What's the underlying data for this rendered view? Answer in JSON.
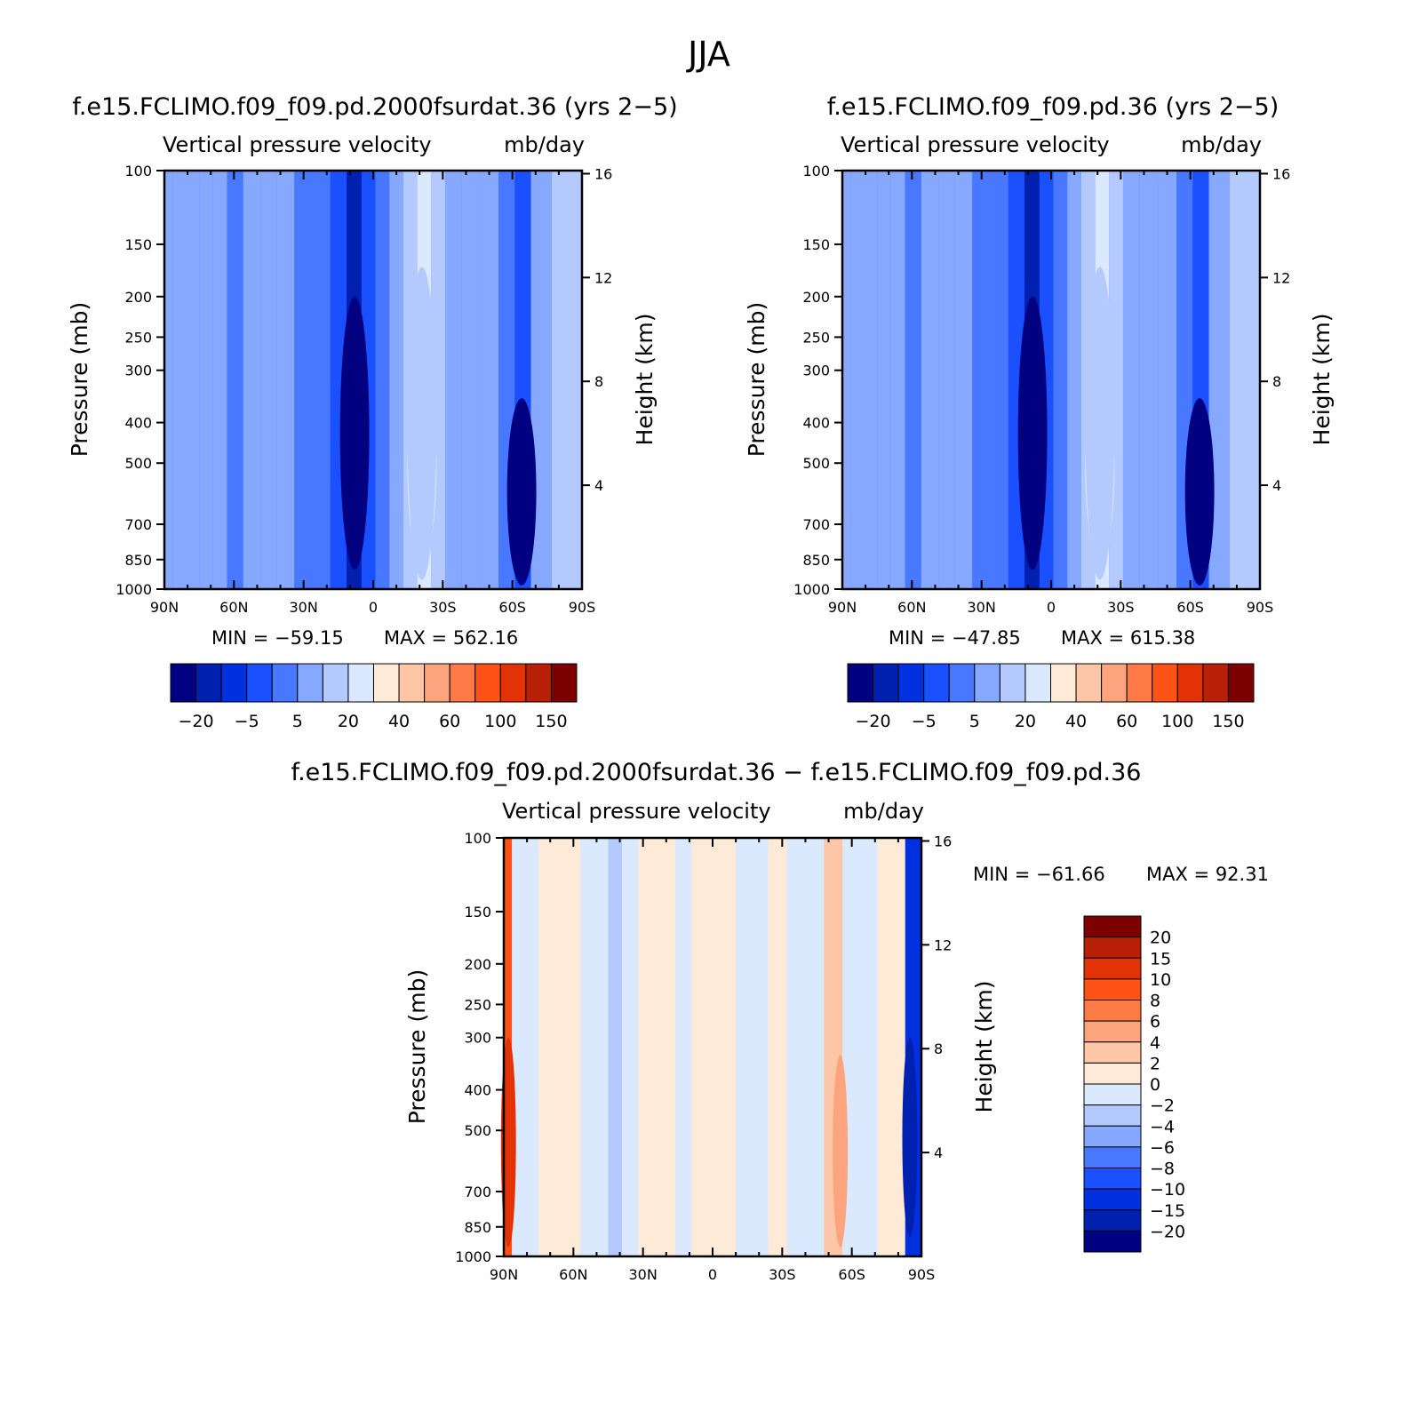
{
  "figure": {
    "title": "JJA",
    "colors": {
      "blue_scale": [
        "#000080",
        "#0020b0",
        "#0030e0",
        "#1a50ff",
        "#4878ff",
        "#86a8ff",
        "#b4caff",
        "#dbe9ff"
      ],
      "red_scale": [
        "#ffead7",
        "#fdc6a6",
        "#fba47d",
        "#fe7a46",
        "#fe5216",
        "#e33205",
        "#b82108",
        "#7d0000"
      ]
    }
  },
  "chart_data": [
    {
      "id": "panel-a",
      "type": "heatmap",
      "title": "f.e15.FCLIMO.f09_f09.pd.2000fsurdat.36 (yrs 2−5)",
      "subtitle_left": "Vertical pressure velocity",
      "subtitle_right": "mb/day",
      "xlabel": "",
      "ylabel": "Pressure (mb)",
      "ylabel_right": "Height (km)",
      "x_ticks": [
        "90N",
        "60N",
        "30N",
        "0",
        "30S",
        "60S",
        "90S"
      ],
      "x_values": [
        90,
        60,
        30,
        0,
        -30,
        -60,
        -90
      ],
      "y_ticks": [
        "100",
        "150",
        "200",
        "250",
        "300",
        "400",
        "500",
        "700",
        "850",
        "1000"
      ],
      "y_values": [
        100,
        150,
        200,
        250,
        300,
        400,
        500,
        700,
        850,
        1000
      ],
      "y_right_ticks": [
        "16",
        "12",
        "8",
        "4"
      ],
      "y_right_values": [
        16,
        12,
        8,
        4
      ],
      "ylim": [
        1000,
        100
      ],
      "min_label": "MIN = −59.15",
      "max_label": "MAX = 562.16",
      "min": -59.15,
      "max": 562.16,
      "colorbar_labels": [
        "−20",
        "−5",
        "5",
        "20",
        "40",
        "60",
        "100",
        "150"
      ],
      "columns": [
        {
          "lat": 89,
          "v": 5
        },
        {
          "lat": 84,
          "v": 8
        },
        {
          "lat": 78,
          "v": 5
        },
        {
          "lat": 72,
          "v": 8
        },
        {
          "lat": 66,
          "v": 5
        },
        {
          "lat": 60,
          "v": 2
        },
        {
          "lat": 52,
          "v": 5
        },
        {
          "lat": 45,
          "v": 8
        },
        {
          "lat": 38,
          "v": 5
        },
        {
          "lat": 30,
          "v": 2
        },
        {
          "lat": 22,
          "v": 0
        },
        {
          "lat": 15,
          "v": -5
        },
        {
          "lat": 8,
          "v": -20
        },
        {
          "lat": 2,
          "v": -5
        },
        {
          "lat": -4,
          "v": 2
        },
        {
          "lat": -10,
          "v": 8
        },
        {
          "lat": -16,
          "v": 12
        },
        {
          "lat": -22,
          "v": 20
        },
        {
          "lat": -28,
          "v": 12
        },
        {
          "lat": -34,
          "v": 8
        },
        {
          "lat": -42,
          "v": 5
        },
        {
          "lat": -50,
          "v": 5
        },
        {
          "lat": -58,
          "v": 2
        },
        {
          "lat": -64,
          "v": -5
        },
        {
          "lat": -72,
          "v": 8
        },
        {
          "lat": -82,
          "v": 12
        }
      ]
    },
    {
      "id": "panel-b",
      "type": "heatmap",
      "title": "f.e15.FCLIMO.f09_f09.pd.36 (yrs 2−5)",
      "subtitle_left": "Vertical pressure velocity",
      "subtitle_right": "mb/day",
      "xlabel": "",
      "ylabel": "Pressure (mb)",
      "ylabel_right": "Height (km)",
      "x_ticks": [
        "90N",
        "60N",
        "30N",
        "0",
        "30S",
        "60S",
        "90S"
      ],
      "x_values": [
        90,
        60,
        30,
        0,
        -30,
        -60,
        -90
      ],
      "y_ticks": [
        "100",
        "150",
        "200",
        "250",
        "300",
        "400",
        "500",
        "700",
        "850",
        "1000"
      ],
      "y_values": [
        100,
        150,
        200,
        250,
        300,
        400,
        500,
        700,
        850,
        1000
      ],
      "y_right_ticks": [
        "16",
        "12",
        "8",
        "4"
      ],
      "y_right_values": [
        16,
        12,
        8,
        4
      ],
      "ylim": [
        1000,
        100
      ],
      "min_label": "MIN = −47.85",
      "max_label": "MAX = 615.38",
      "min": -47.85,
      "max": 615.38,
      "colorbar_labels": [
        "−20",
        "−5",
        "5",
        "20",
        "40",
        "60",
        "100",
        "150"
      ],
      "columns": [
        {
          "lat": 89,
          "v": 5
        },
        {
          "lat": 84,
          "v": 8
        },
        {
          "lat": 78,
          "v": 5
        },
        {
          "lat": 72,
          "v": 8
        },
        {
          "lat": 66,
          "v": 5
        },
        {
          "lat": 60,
          "v": 2
        },
        {
          "lat": 52,
          "v": 5
        },
        {
          "lat": 45,
          "v": 8
        },
        {
          "lat": 38,
          "v": 5
        },
        {
          "lat": 30,
          "v": 2
        },
        {
          "lat": 22,
          "v": 0
        },
        {
          "lat": 15,
          "v": -5
        },
        {
          "lat": 8,
          "v": -20
        },
        {
          "lat": 2,
          "v": -5
        },
        {
          "lat": -4,
          "v": 2
        },
        {
          "lat": -10,
          "v": 8
        },
        {
          "lat": -16,
          "v": 12
        },
        {
          "lat": -22,
          "v": 20
        },
        {
          "lat": -28,
          "v": 12
        },
        {
          "lat": -34,
          "v": 8
        },
        {
          "lat": -42,
          "v": 5
        },
        {
          "lat": -50,
          "v": 5
        },
        {
          "lat": -58,
          "v": 2
        },
        {
          "lat": -64,
          "v": -5
        },
        {
          "lat": -72,
          "v": 8
        },
        {
          "lat": -82,
          "v": 12
        }
      ]
    },
    {
      "id": "panel-c",
      "type": "heatmap",
      "title": "f.e15.FCLIMO.f09_f09.pd.2000fsurdat.36 − f.e15.FCLIMO.f09_f09.pd.36",
      "subtitle_left": "Vertical pressure velocity",
      "subtitle_right": "mb/day",
      "xlabel": "",
      "ylabel": "Pressure (mb)",
      "ylabel_right": "Height (km)",
      "x_ticks": [
        "90N",
        "60N",
        "30N",
        "0",
        "30S",
        "60S",
        "90S"
      ],
      "x_values": [
        90,
        60,
        30,
        0,
        -30,
        -60,
        -90
      ],
      "y_ticks": [
        "100",
        "150",
        "200",
        "250",
        "300",
        "400",
        "500",
        "700",
        "850",
        "1000"
      ],
      "y_values": [
        100,
        150,
        200,
        250,
        300,
        400,
        500,
        700,
        850,
        1000
      ],
      "y_right_ticks": [
        "16",
        "12",
        "8",
        "4"
      ],
      "y_right_values": [
        16,
        12,
        8,
        4
      ],
      "ylim": [
        1000,
        100
      ],
      "min_label": "MIN = −61.66",
      "max_label": "MAX = 92.31",
      "min": -61.66,
      "max": 92.31,
      "colorbar_labels": [
        "20",
        "15",
        "10",
        "8",
        "6",
        "4",
        "2",
        "0",
        "−2",
        "−4",
        "−6",
        "−8",
        "−10",
        "−15",
        "−20"
      ],
      "columns": [
        {
          "lat": 89,
          "v": 8
        },
        {
          "lat": 84,
          "v": -1
        },
        {
          "lat": 78,
          "v": -1
        },
        {
          "lat": 72,
          "v": 1
        },
        {
          "lat": 66,
          "v": 1
        },
        {
          "lat": 60,
          "v": 1
        },
        {
          "lat": 54,
          "v": -1
        },
        {
          "lat": 48,
          "v": -1
        },
        {
          "lat": 42,
          "v": -3
        },
        {
          "lat": 36,
          "v": -1
        },
        {
          "lat": 28,
          "v": 1
        },
        {
          "lat": 20,
          "v": 1
        },
        {
          "lat": 12,
          "v": -1
        },
        {
          "lat": 6,
          "v": 1
        },
        {
          "lat": 0,
          "v": 1
        },
        {
          "lat": -6,
          "v": 1
        },
        {
          "lat": -14,
          "v": -1
        },
        {
          "lat": -20,
          "v": -1
        },
        {
          "lat": -28,
          "v": 1
        },
        {
          "lat": -36,
          "v": -1
        },
        {
          "lat": -44,
          "v": -1
        },
        {
          "lat": -52,
          "v": 3
        },
        {
          "lat": -60,
          "v": -1
        },
        {
          "lat": -68,
          "v": -1
        },
        {
          "lat": -74,
          "v": 1
        },
        {
          "lat": -80,
          "v": 1
        },
        {
          "lat": -86,
          "v": -12
        }
      ]
    }
  ]
}
